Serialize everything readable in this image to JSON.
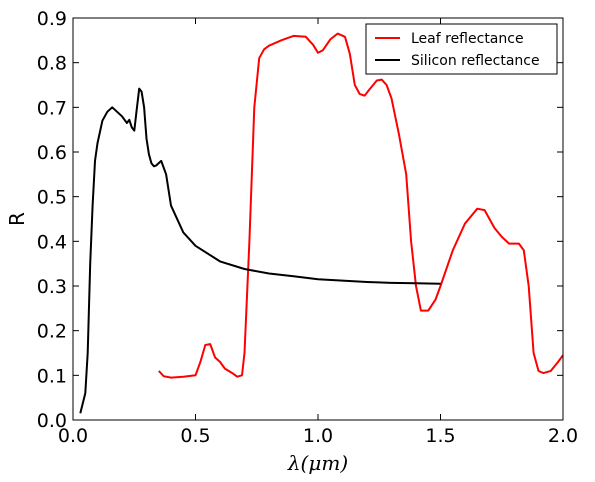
{
  "chart_data": {
    "type": "line",
    "xlabel": "λ(μm)",
    "ylabel": "R",
    "xlim": [
      0.0,
      2.0
    ],
    "ylim": [
      0.0,
      0.9
    ],
    "x_ticks": [
      0.0,
      0.5,
      1.0,
      1.5,
      2.0
    ],
    "x_tick_labels": [
      "0.0",
      "0.5",
      "1.0",
      "1.5",
      "2.0"
    ],
    "y_ticks": [
      0.0,
      0.1,
      0.2,
      0.3,
      0.4,
      0.5,
      0.6,
      0.7,
      0.8,
      0.9
    ],
    "y_tick_labels": [
      "0.0",
      "0.1",
      "0.2",
      "0.3",
      "0.4",
      "0.5",
      "0.6",
      "0.7",
      "0.8",
      "0.9"
    ],
    "grid": false,
    "legend_position": "top-right",
    "series": [
      {
        "name": "Leaf reflectance",
        "color": "#ff0000",
        "points": [
          [
            0.35,
            0.11
          ],
          [
            0.37,
            0.098
          ],
          [
            0.4,
            0.095
          ],
          [
            0.45,
            0.097
          ],
          [
            0.5,
            0.1
          ],
          [
            0.52,
            0.13
          ],
          [
            0.54,
            0.168
          ],
          [
            0.56,
            0.17
          ],
          [
            0.58,
            0.14
          ],
          [
            0.6,
            0.13
          ],
          [
            0.62,
            0.115
          ],
          [
            0.65,
            0.105
          ],
          [
            0.67,
            0.097
          ],
          [
            0.69,
            0.1
          ],
          [
            0.7,
            0.15
          ],
          [
            0.72,
            0.4
          ],
          [
            0.74,
            0.7
          ],
          [
            0.76,
            0.81
          ],
          [
            0.78,
            0.83
          ],
          [
            0.8,
            0.838
          ],
          [
            0.85,
            0.85
          ],
          [
            0.9,
            0.86
          ],
          [
            0.95,
            0.858
          ],
          [
            0.98,
            0.84
          ],
          [
            1.0,
            0.822
          ],
          [
            1.02,
            0.828
          ],
          [
            1.05,
            0.852
          ],
          [
            1.08,
            0.865
          ],
          [
            1.11,
            0.858
          ],
          [
            1.13,
            0.82
          ],
          [
            1.15,
            0.75
          ],
          [
            1.17,
            0.73
          ],
          [
            1.19,
            0.726
          ],
          [
            1.21,
            0.74
          ],
          [
            1.24,
            0.76
          ],
          [
            1.26,
            0.762
          ],
          [
            1.28,
            0.75
          ],
          [
            1.3,
            0.72
          ],
          [
            1.33,
            0.64
          ],
          [
            1.36,
            0.55
          ],
          [
            1.38,
            0.4
          ],
          [
            1.4,
            0.3
          ],
          [
            1.42,
            0.245
          ],
          [
            1.45,
            0.245
          ],
          [
            1.48,
            0.27
          ],
          [
            1.5,
            0.3
          ],
          [
            1.55,
            0.38
          ],
          [
            1.6,
            0.44
          ],
          [
            1.65,
            0.473
          ],
          [
            1.68,
            0.47
          ],
          [
            1.72,
            0.43
          ],
          [
            1.75,
            0.41
          ],
          [
            1.78,
            0.395
          ],
          [
            1.82,
            0.395
          ],
          [
            1.84,
            0.38
          ],
          [
            1.86,
            0.3
          ],
          [
            1.88,
            0.15
          ],
          [
            1.9,
            0.11
          ],
          [
            1.92,
            0.105
          ],
          [
            1.95,
            0.11
          ],
          [
            1.98,
            0.13
          ],
          [
            2.0,
            0.145
          ]
        ]
      },
      {
        "name": "Silicon reflectance",
        "color": "#000000",
        "points": [
          [
            0.03,
            0.015
          ],
          [
            0.05,
            0.06
          ],
          [
            0.06,
            0.15
          ],
          [
            0.07,
            0.35
          ],
          [
            0.08,
            0.48
          ],
          [
            0.09,
            0.58
          ],
          [
            0.1,
            0.62
          ],
          [
            0.12,
            0.67
          ],
          [
            0.14,
            0.69
          ],
          [
            0.16,
            0.7
          ],
          [
            0.18,
            0.69
          ],
          [
            0.2,
            0.68
          ],
          [
            0.22,
            0.665
          ],
          [
            0.23,
            0.672
          ],
          [
            0.24,
            0.655
          ],
          [
            0.25,
            0.648
          ],
          [
            0.26,
            0.695
          ],
          [
            0.27,
            0.742
          ],
          [
            0.28,
            0.735
          ],
          [
            0.29,
            0.7
          ],
          [
            0.3,
            0.63
          ],
          [
            0.31,
            0.595
          ],
          [
            0.32,
            0.575
          ],
          [
            0.33,
            0.568
          ],
          [
            0.34,
            0.57
          ],
          [
            0.36,
            0.58
          ],
          [
            0.38,
            0.55
          ],
          [
            0.4,
            0.48
          ],
          [
            0.45,
            0.42
          ],
          [
            0.5,
            0.39
          ],
          [
            0.6,
            0.355
          ],
          [
            0.7,
            0.338
          ],
          [
            0.8,
            0.328
          ],
          [
            0.9,
            0.322
          ],
          [
            1.0,
            0.315
          ],
          [
            1.1,
            0.312
          ],
          [
            1.2,
            0.309
          ],
          [
            1.3,
            0.307
          ],
          [
            1.4,
            0.306
          ],
          [
            1.5,
            0.305
          ]
        ]
      }
    ]
  }
}
